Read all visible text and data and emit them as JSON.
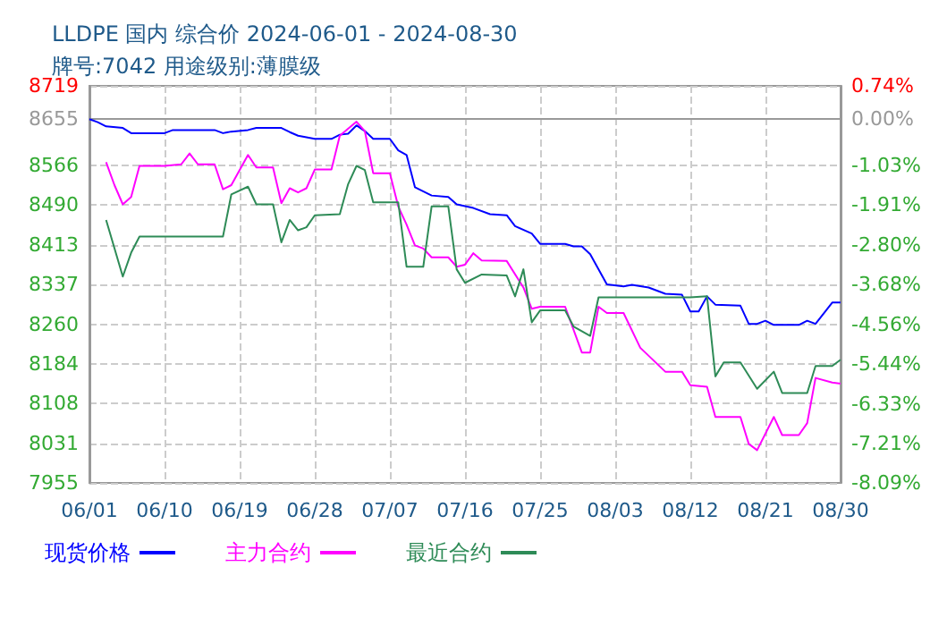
{
  "chart_data": {
    "type": "line",
    "title": "LLDPE 国内 综合价 2024-06-01 - 2024-08-30",
    "subtitle": "牌号:7042 用途级别:薄膜级",
    "xlim": [
      "2024-06-01",
      "2024-08-30"
    ],
    "xticks": [
      {
        "value": "2024-06-01",
        "label": "06/01"
      },
      {
        "value": "2024-06-10",
        "label": "06/10"
      },
      {
        "value": "2024-06-19",
        "label": "06/19"
      },
      {
        "value": "2024-06-28",
        "label": "06/28"
      },
      {
        "value": "2024-07-07",
        "label": "07/07"
      },
      {
        "value": "2024-07-16",
        "label": "07/16"
      },
      {
        "value": "2024-07-25",
        "label": "07/25"
      },
      {
        "value": "2024-08-03",
        "label": "08/03"
      },
      {
        "value": "2024-08-12",
        "label": "08/12"
      },
      {
        "value": "2024-08-21",
        "label": "08/21"
      },
      {
        "value": "2024-08-30",
        "label": "08/30"
      }
    ],
    "ylim": [
      7955,
      8719
    ],
    "yticks": [
      7955,
      8031,
      8108,
      8184,
      8260,
      8337,
      8413,
      8490,
      8566,
      8655,
      8719
    ],
    "y2lim": [
      -8.09,
      0.74
    ],
    "y2ticks": [
      {
        "value": -8.09,
        "label": "-8.09%"
      },
      {
        "value": -7.21,
        "label": "-7.21%"
      },
      {
        "value": -6.33,
        "label": "-6.33%"
      },
      {
        "value": -5.44,
        "label": "-5.44%"
      },
      {
        "value": -4.56,
        "label": "-4.56%"
      },
      {
        "value": -3.68,
        "label": "-3.68%"
      },
      {
        "value": -2.8,
        "label": "-2.80%"
      },
      {
        "value": -1.91,
        "label": "-1.91%"
      },
      {
        "value": -1.03,
        "label": "-1.03%"
      },
      {
        "value": 0.0,
        "label": "0.00%"
      },
      {
        "value": 0.74,
        "label": "0.74%"
      }
    ],
    "grid": true,
    "legend": "bottom",
    "marker": "none",
    "line_style": "solid",
    "series": [
      {
        "name": "现货价格",
        "color": "#0000ff",
        "x": [
          "2024-06-01",
          "2024-06-02",
          "2024-06-03",
          "2024-06-05",
          "2024-06-06",
          "2024-06-10",
          "2024-06-11",
          "2024-06-16",
          "2024-06-17",
          "2024-06-18",
          "2024-06-20",
          "2024-06-21",
          "2024-06-24",
          "2024-06-25",
          "2024-06-26",
          "2024-06-28",
          "2024-06-30",
          "2024-07-01",
          "2024-07-02",
          "2024-07-03",
          "2024-07-04",
          "2024-07-05",
          "2024-07-07",
          "2024-07-08",
          "2024-07-09",
          "2024-07-10",
          "2024-07-12",
          "2024-07-14",
          "2024-07-15",
          "2024-07-17",
          "2024-07-19",
          "2024-07-21",
          "2024-07-22",
          "2024-07-24",
          "2024-07-25",
          "2024-07-28",
          "2024-07-29",
          "2024-07-30",
          "2024-07-31",
          "2024-08-02",
          "2024-08-04",
          "2024-08-05",
          "2024-08-07",
          "2024-08-09",
          "2024-08-11",
          "2024-08-12",
          "2024-08-13",
          "2024-08-14",
          "2024-08-15",
          "2024-08-18",
          "2024-08-19",
          "2024-08-20",
          "2024-08-21",
          "2024-08-22",
          "2024-08-25",
          "2024-08-26",
          "2024-08-27",
          "2024-08-29",
          "2024-08-30"
        ],
        "values": [
          8655,
          8649,
          8641,
          8638,
          8628,
          8628,
          8634,
          8634,
          8628,
          8631,
          8634,
          8638,
          8638,
          8630,
          8623,
          8617,
          8617,
          8625,
          8627,
          8643,
          8632,
          8617,
          8617,
          8595,
          8586,
          8524,
          8508,
          8505,
          8491,
          8484,
          8472,
          8470,
          8449,
          8435,
          8415,
          8415,
          8410,
          8410,
          8395,
          8337,
          8333,
          8336,
          8331,
          8319,
          8317,
          8285,
          8285,
          8314,
          8298,
          8296,
          8261,
          8261,
          8267,
          8259,
          8259,
          8267,
          8261,
          8302,
          8302
        ]
      },
      {
        "name": "主力合约",
        "color": "#ff00ff",
        "x": [
          "2024-06-03",
          "2024-06-04",
          "2024-06-05",
          "2024-06-06",
          "2024-06-07",
          "2024-06-10",
          "2024-06-12",
          "2024-06-13",
          "2024-06-14",
          "2024-06-16",
          "2024-06-17",
          "2024-06-18",
          "2024-06-20",
          "2024-06-21",
          "2024-06-23",
          "2024-06-24",
          "2024-06-25",
          "2024-06-26",
          "2024-06-27",
          "2024-06-28",
          "2024-06-30",
          "2024-07-01",
          "2024-07-03",
          "2024-07-04",
          "2024-07-05",
          "2024-07-07",
          "2024-07-08",
          "2024-07-09",
          "2024-07-10",
          "2024-07-11",
          "2024-07-12",
          "2024-07-14",
          "2024-07-15",
          "2024-07-16",
          "2024-07-17",
          "2024-07-18",
          "2024-07-21",
          "2024-07-23",
          "2024-07-24",
          "2024-07-25",
          "2024-07-28",
          "2024-07-30",
          "2024-07-31",
          "2024-08-01",
          "2024-08-02",
          "2024-08-04",
          "2024-08-06",
          "2024-08-09",
          "2024-08-11",
          "2024-08-12",
          "2024-08-14",
          "2024-08-15",
          "2024-08-18",
          "2024-08-19",
          "2024-08-20",
          "2024-08-22",
          "2024-08-23",
          "2024-08-25",
          "2024-08-26",
          "2024-08-27",
          "2024-08-29",
          "2024-08-30"
        ],
        "values": [
          8572,
          8528,
          8491,
          8505,
          8565,
          8565,
          8568,
          8589,
          8568,
          8568,
          8520,
          8528,
          8586,
          8562,
          8562,
          8493,
          8522,
          8514,
          8522,
          8558,
          8558,
          8623,
          8650,
          8632,
          8551,
          8551,
          8487,
          8452,
          8412,
          8406,
          8389,
          8389,
          8371,
          8375,
          8397,
          8383,
          8382,
          8331,
          8290,
          8294,
          8294,
          8206,
          8206,
          8294,
          8282,
          8282,
          8215,
          8169,
          8169,
          8143,
          8140,
          8082,
          8082,
          8030,
          8018,
          8082,
          8047,
          8047,
          8070,
          8157,
          8148,
          8146
        ]
      },
      {
        "name": "最近合约",
        "color": "#2e8b57",
        "x": [
          "2024-06-03",
          "2024-06-05",
          "2024-06-06",
          "2024-06-07",
          "2024-06-17",
          "2024-06-18",
          "2024-06-20",
          "2024-06-21",
          "2024-06-23",
          "2024-06-24",
          "2024-06-25",
          "2024-06-26",
          "2024-06-27",
          "2024-06-28",
          "2024-07-01",
          "2024-07-02",
          "2024-07-03",
          "2024-07-04",
          "2024-07-05",
          "2024-07-08",
          "2024-07-09",
          "2024-07-11",
          "2024-07-12",
          "2024-07-14",
          "2024-07-15",
          "2024-07-16",
          "2024-07-18",
          "2024-07-21",
          "2024-07-22",
          "2024-07-23",
          "2024-07-24",
          "2024-07-25",
          "2024-07-28",
          "2024-07-29",
          "2024-07-31",
          "2024-08-01",
          "2024-08-12",
          "2024-08-14",
          "2024-08-15",
          "2024-08-16",
          "2024-08-18",
          "2024-08-20",
          "2024-08-22",
          "2024-08-23",
          "2024-08-26",
          "2024-08-27",
          "2024-08-29",
          "2024-08-30"
        ],
        "values": [
          8461,
          8352,
          8398,
          8429,
          8429,
          8510,
          8525,
          8491,
          8491,
          8418,
          8461,
          8441,
          8447,
          8470,
          8472,
          8530,
          8565,
          8557,
          8495,
          8495,
          8371,
          8371,
          8487,
          8487,
          8366,
          8340,
          8356,
          8354,
          8314,
          8366,
          8264,
          8287,
          8287,
          8256,
          8238,
          8312,
          8312,
          8314,
          8160,
          8187,
          8187,
          8136,
          8169,
          8128,
          8128,
          8180,
          8180,
          8192
        ]
      }
    ]
  }
}
